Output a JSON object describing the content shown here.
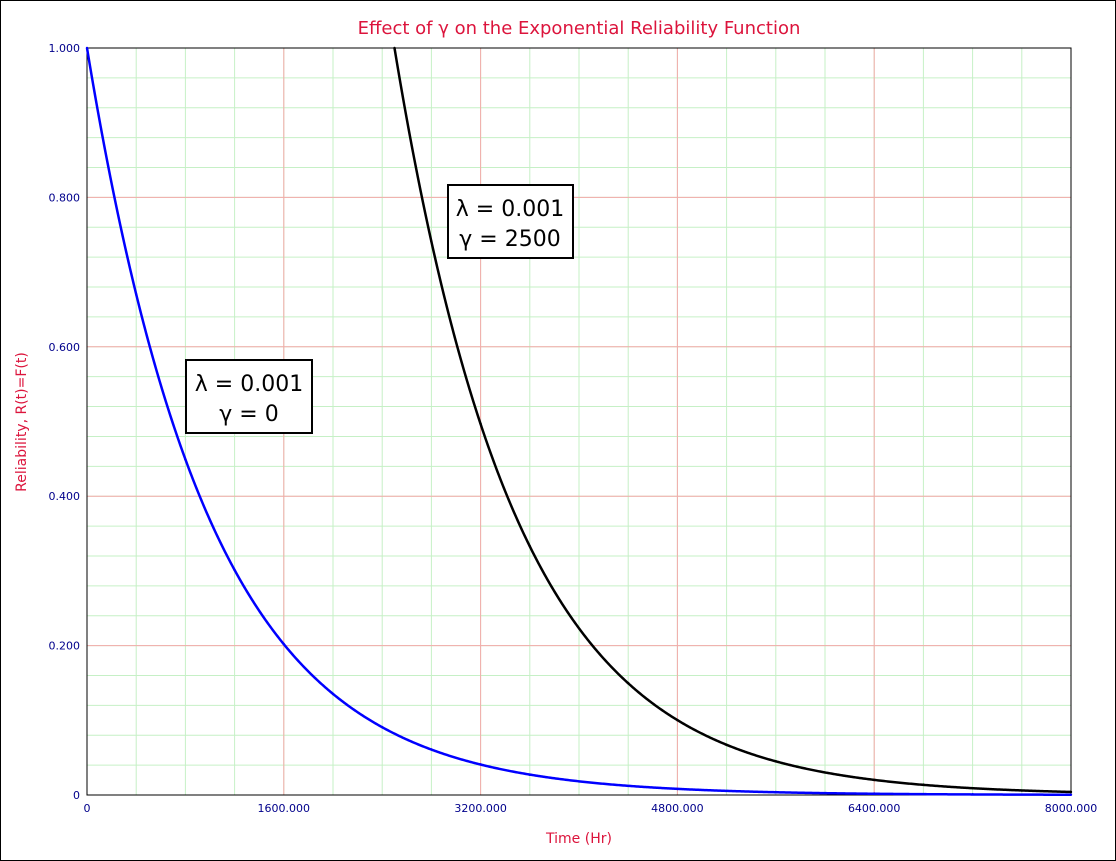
{
  "chart_data": {
    "type": "line",
    "title": "Effect of γ on the Exponential Reliability Function",
    "xlabel": "Time (Hr)",
    "ylabel": "Reliability, R(t)=F(t)",
    "xlim": [
      0,
      8000
    ],
    "ylim": [
      0,
      1
    ],
    "x_tick_labels": [
      "0",
      "1600.000",
      "3200.000",
      "4800.000",
      "6400.000",
      "8000.000"
    ],
    "y_tick_labels": [
      "0",
      "0.200",
      "0.400",
      "0.600",
      "0.800",
      "1.000"
    ],
    "grid": true,
    "colors": {
      "title": "#dc143c",
      "ticks": "#00008b",
      "major_grid": "#f4aaaa",
      "minor_grid": "#c6f0c6"
    },
    "series": [
      {
        "color": "#0000ff",
        "lambda": 0.001,
        "gamma": 0,
        "x": [
          0,
          400,
          800,
          1200,
          1600,
          2000,
          2400,
          2800,
          3200,
          3600,
          4000,
          4800,
          5600,
          6400,
          7200,
          8000
        ],
        "y": [
          1.0,
          0.67,
          0.449,
          0.301,
          0.202,
          0.135,
          0.091,
          0.061,
          0.041,
          0.027,
          0.018,
          0.008,
          0.004,
          0.002,
          0.001,
          0.0003
        ]
      },
      {
        "color": "#000000",
        "lambda": 0.001,
        "gamma": 2500,
        "x": [
          2500,
          2800,
          3200,
          3600,
          4000,
          4400,
          4800,
          5200,
          5600,
          6000,
          6400,
          6800,
          7200,
          7600,
          8000
        ],
        "y": [
          1.0,
          0.741,
          0.497,
          0.333,
          0.223,
          0.15,
          0.1,
          0.067,
          0.045,
          0.03,
          0.02,
          0.014,
          0.009,
          0.006,
          0.004
        ]
      }
    ],
    "annotations": [
      {
        "line1": "λ = 0.001",
        "line2": "γ = 2500"
      },
      {
        "line1": "λ = 0.001",
        "line2": "γ = 0"
      }
    ]
  }
}
